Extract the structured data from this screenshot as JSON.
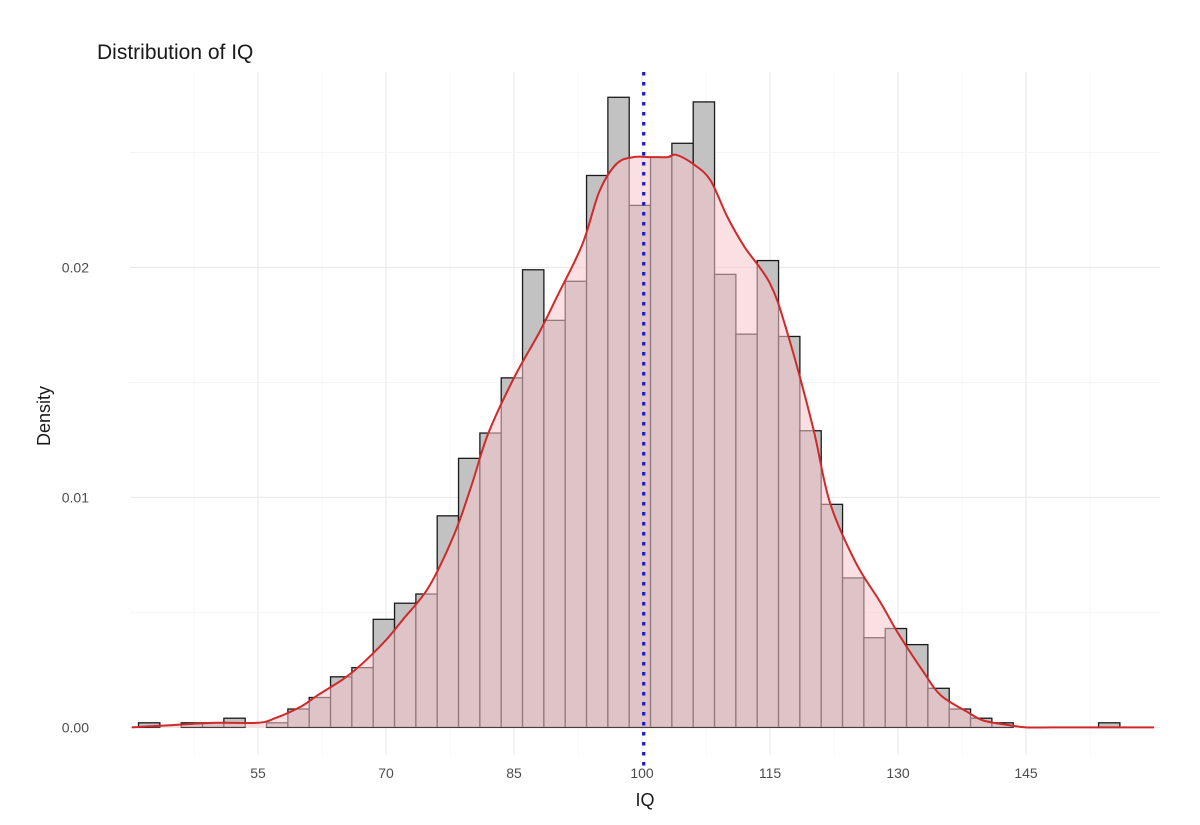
{
  "chart_data": {
    "type": "bar",
    "title": "Distribution of IQ",
    "xlabel": "IQ",
    "ylabel": "Density",
    "xlim": [
      40.0,
      160.7
    ],
    "ylim": [
      -0.0012,
      0.0285
    ],
    "x_ticks": [
      55,
      70,
      85,
      100,
      115,
      130,
      145
    ],
    "x_tick_labels": [
      "55",
      "70",
      "85",
      "100",
      "115",
      "130",
      "145"
    ],
    "y_ticks": [
      0.0,
      0.01,
      0.02
    ],
    "y_tick_labels": [
      "0.00",
      "0.01",
      "0.02"
    ],
    "grid": true,
    "legend": "none",
    "histogram": {
      "bin_width": 2.5,
      "bins": [
        {
          "x0": 41.0,
          "x1": 43.5,
          "density": 0.0002
        },
        {
          "x0": 46.0,
          "x1": 48.5,
          "density": 0.0002
        },
        {
          "x0": 48.5,
          "x1": 51.0,
          "density": 0.0002
        },
        {
          "x0": 51.0,
          "x1": 53.5,
          "density": 0.0004
        },
        {
          "x0": 56.0,
          "x1": 58.5,
          "density": 0.0002
        },
        {
          "x0": 58.5,
          "x1": 61.0,
          "density": 0.0008
        },
        {
          "x0": 61.0,
          "x1": 63.5,
          "density": 0.0013
        },
        {
          "x0": 63.5,
          "x1": 66.0,
          "density": 0.0022
        },
        {
          "x0": 66.0,
          "x1": 68.5,
          "density": 0.0026
        },
        {
          "x0": 68.5,
          "x1": 71.0,
          "density": 0.0047
        },
        {
          "x0": 71.0,
          "x1": 73.5,
          "density": 0.0054
        },
        {
          "x0": 73.5,
          "x1": 76.0,
          "density": 0.0058
        },
        {
          "x0": 76.0,
          "x1": 78.5,
          "density": 0.0092
        },
        {
          "x0": 78.5,
          "x1": 81.0,
          "density": 0.0117
        },
        {
          "x0": 81.0,
          "x1": 83.5,
          "density": 0.0128
        },
        {
          "x0": 83.5,
          "x1": 86.0,
          "density": 0.0152
        },
        {
          "x0": 86.0,
          "x1": 88.5,
          "density": 0.0199
        },
        {
          "x0": 88.5,
          "x1": 91.0,
          "density": 0.0177
        },
        {
          "x0": 91.0,
          "x1": 93.5,
          "density": 0.0194
        },
        {
          "x0": 93.5,
          "x1": 96.0,
          "density": 0.024
        },
        {
          "x0": 96.0,
          "x1": 98.5,
          "density": 0.0274
        },
        {
          "x0": 98.5,
          "x1": 101.0,
          "density": 0.0227
        },
        {
          "x0": 101.0,
          "x1": 103.5,
          "density": 0.0248
        },
        {
          "x0": 103.5,
          "x1": 106.0,
          "density": 0.0254
        },
        {
          "x0": 106.0,
          "x1": 108.5,
          "density": 0.0272
        },
        {
          "x0": 108.5,
          "x1": 111.0,
          "density": 0.0197
        },
        {
          "x0": 111.0,
          "x1": 113.5,
          "density": 0.0171
        },
        {
          "x0": 113.5,
          "x1": 116.0,
          "density": 0.0203
        },
        {
          "x0": 116.0,
          "x1": 118.5,
          "density": 0.017
        },
        {
          "x0": 118.5,
          "x1": 121.0,
          "density": 0.0129
        },
        {
          "x0": 121.0,
          "x1": 123.5,
          "density": 0.0097
        },
        {
          "x0": 123.5,
          "x1": 126.0,
          "density": 0.0065
        },
        {
          "x0": 126.0,
          "x1": 128.5,
          "density": 0.0039
        },
        {
          "x0": 128.5,
          "x1": 131.0,
          "density": 0.0043
        },
        {
          "x0": 131.0,
          "x1": 133.5,
          "density": 0.0036
        },
        {
          "x0": 133.5,
          "x1": 136.0,
          "density": 0.0017
        },
        {
          "x0": 136.0,
          "x1": 138.5,
          "density": 0.0008
        },
        {
          "x0": 138.5,
          "x1": 141.0,
          "density": 0.0004
        },
        {
          "x0": 141.0,
          "x1": 143.5,
          "density": 0.0002
        },
        {
          "x0": 153.5,
          "x1": 156.0,
          "density": 0.0002
        }
      ]
    },
    "density_curve": {
      "x": [
        40.2,
        45,
        50,
        55,
        57,
        60,
        62,
        65,
        67,
        70,
        72,
        75,
        78,
        80,
        82,
        85,
        88,
        90,
        93,
        95,
        97,
        99,
        101,
        103,
        104,
        106,
        108,
        110,
        112,
        115,
        117,
        120,
        122,
        125,
        128,
        130,
        133,
        135,
        138,
        140,
        143,
        145,
        148,
        150,
        155,
        160
      ],
      "y": [
        0.0,
        0.0001,
        0.0002,
        0.0002,
        0.0004,
        0.0009,
        0.0014,
        0.0021,
        0.0027,
        0.0038,
        0.0047,
        0.0061,
        0.0084,
        0.0105,
        0.0128,
        0.0152,
        0.0172,
        0.0187,
        0.021,
        0.0233,
        0.0245,
        0.0248,
        0.0248,
        0.0248,
        0.0249,
        0.0245,
        0.0238,
        0.0222,
        0.0209,
        0.0193,
        0.0172,
        0.0131,
        0.0098,
        0.0072,
        0.0054,
        0.0041,
        0.0024,
        0.0014,
        0.0007,
        0.0003,
        0.0001,
        0.0,
        0.0,
        0.0,
        0.0,
        0.0
      ]
    },
    "reference_line": {
      "x": 100.2,
      "style": "dotted",
      "color": "#1a1acc"
    },
    "colors": {
      "bar_fill": "#c2c2c2",
      "bar_stroke": "#1a1a1a",
      "curve_fill": "#f7c6cc",
      "curve_stroke": "#cf2a2a",
      "grid_major": "#ebebeb",
      "grid_minor": "#f5f5f5",
      "text": "#1a1a1a",
      "tick_text": "#4d4d4d"
    }
  }
}
